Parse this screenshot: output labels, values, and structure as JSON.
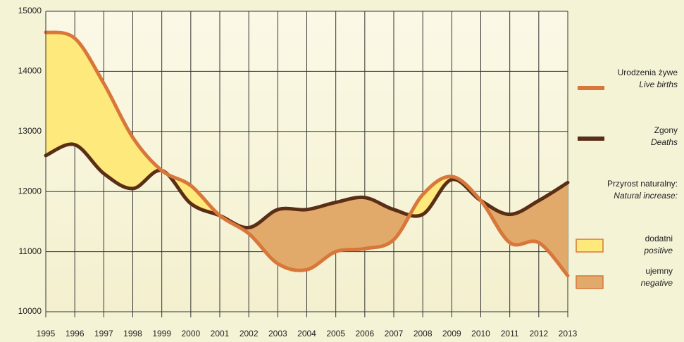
{
  "chart_data": {
    "type": "line",
    "x": [
      1995,
      1996,
      1997,
      1998,
      1999,
      2000,
      2001,
      2002,
      2003,
      2004,
      2005,
      2006,
      2007,
      2008,
      2009,
      2010,
      2011,
      2012,
      2013
    ],
    "xlim": [
      1995,
      2013
    ],
    "xticks": [
      1995,
      1996,
      1997,
      1998,
      1999,
      2000,
      2001,
      2002,
      2003,
      2004,
      2005,
      2006,
      2007,
      2008,
      2009,
      2010,
      2011,
      2012,
      2013
    ],
    "ylim": [
      10000,
      15000
    ],
    "yticks": [
      10000,
      11000,
      12000,
      13000,
      14000,
      15000
    ],
    "grid": true,
    "series": [
      {
        "name": "Urodzenia żywe",
        "name_en": "Live births",
        "color": "#d9773a",
        "values": [
          14650,
          14550,
          13800,
          12900,
          12350,
          12100,
          11600,
          11300,
          10800,
          10700,
          11000,
          11050,
          11200,
          11950,
          12250,
          11850,
          11150,
          11150,
          10600
        ]
      },
      {
        "name": "Zgony",
        "name_en": "Deaths",
        "color": "#5a2e16",
        "values": [
          12600,
          12780,
          12300,
          12050,
          12350,
          11800,
          11600,
          11400,
          11700,
          11700,
          11820,
          11900,
          11700,
          11620,
          12200,
          11850,
          11620,
          11850,
          12150
        ]
      }
    ],
    "fill_legend": {
      "title": "Przyrost naturalny:",
      "title_en": "Natural increase:",
      "positive": {
        "name": "dodatni",
        "name_en": "positive",
        "color": "#fde97c"
      },
      "negative": {
        "name": "ujemny",
        "name_en": "negative",
        "color": "#e1aa6b"
      }
    }
  }
}
